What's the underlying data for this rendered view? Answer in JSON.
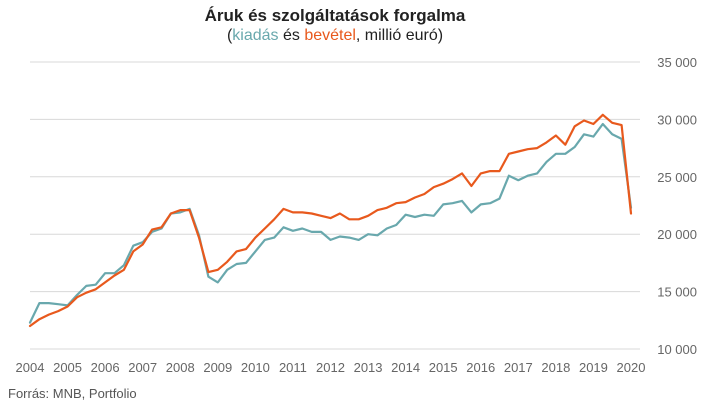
{
  "title": "Áruk és szolgáltatások forgalma",
  "subtitle": {
    "open": "(",
    "s1": "kiadás",
    "mid": " és ",
    "s2": "bevétel",
    "close": ", millió euró)"
  },
  "source": "Forrás: MNB, Portfolio",
  "colors": {
    "expense": "#69a8ad",
    "revenue": "#e8591d",
    "grid": "#d8d8d8"
  },
  "chart_data": {
    "type": "line",
    "title": "Áruk és szolgáltatások forgalma",
    "subtitle": "(kiadás és bevétel, millió euró)",
    "xlabel": "",
    "ylabel": "",
    "x_ticks": [
      "2004",
      "2005",
      "2006",
      "2007",
      "2008",
      "2009",
      "2010",
      "2011",
      "2012",
      "2013",
      "2014",
      "2015",
      "2016",
      "2017",
      "2018",
      "2019",
      "2020"
    ],
    "x_start": 2004,
    "periods_per_year": 4,
    "ylim": [
      10000,
      35000
    ],
    "y_ticks": [
      10000,
      15000,
      20000,
      25000,
      30000,
      35000
    ],
    "y_tick_labels": [
      "10 000",
      "15 000",
      "20 000",
      "25 000",
      "30 000",
      "35 000"
    ],
    "grid": true,
    "series": [
      {
        "name": "kiadás",
        "color": "#69a8ad",
        "values": [
          12300,
          14000,
          14000,
          13900,
          13800,
          14700,
          15500,
          15600,
          16600,
          16600,
          17300,
          19000,
          19300,
          20200,
          20500,
          21800,
          21900,
          22200,
          19900,
          16300,
          15800,
          16900,
          17400,
          17500,
          18500,
          19500,
          19700,
          20600,
          20300,
          20500,
          20200,
          20200,
          19500,
          19800,
          19700,
          19500,
          20000,
          19900,
          20500,
          20800,
          21700,
          21500,
          21700,
          21600,
          22600,
          22700,
          22900,
          21900,
          22600,
          22700,
          23100,
          25100,
          24700,
          25100,
          25300,
          26300,
          27000,
          27000,
          27600,
          28700,
          28500,
          29600,
          28700,
          28300,
          22300
        ]
      },
      {
        "name": "bevétel",
        "color": "#e8591d",
        "values": [
          12000,
          12600,
          13000,
          13300,
          13700,
          14500,
          14900,
          15200,
          15800,
          16400,
          16900,
          18500,
          19100,
          20400,
          20600,
          21800,
          22100,
          22100,
          19700,
          16700,
          16900,
          17600,
          18500,
          18700,
          19700,
          20500,
          21300,
          22200,
          21900,
          21900,
          21800,
          21600,
          21400,
          21800,
          21300,
          21300,
          21600,
          22100,
          22300,
          22700,
          22800,
          23200,
          23500,
          24100,
          24400,
          24800,
          25300,
          24200,
          25300,
          25500,
          25500,
          27000,
          27200,
          27400,
          27500,
          28000,
          28600,
          27800,
          29400,
          29900,
          29600,
          30400,
          29700,
          29500,
          21800
        ]
      }
    ]
  }
}
